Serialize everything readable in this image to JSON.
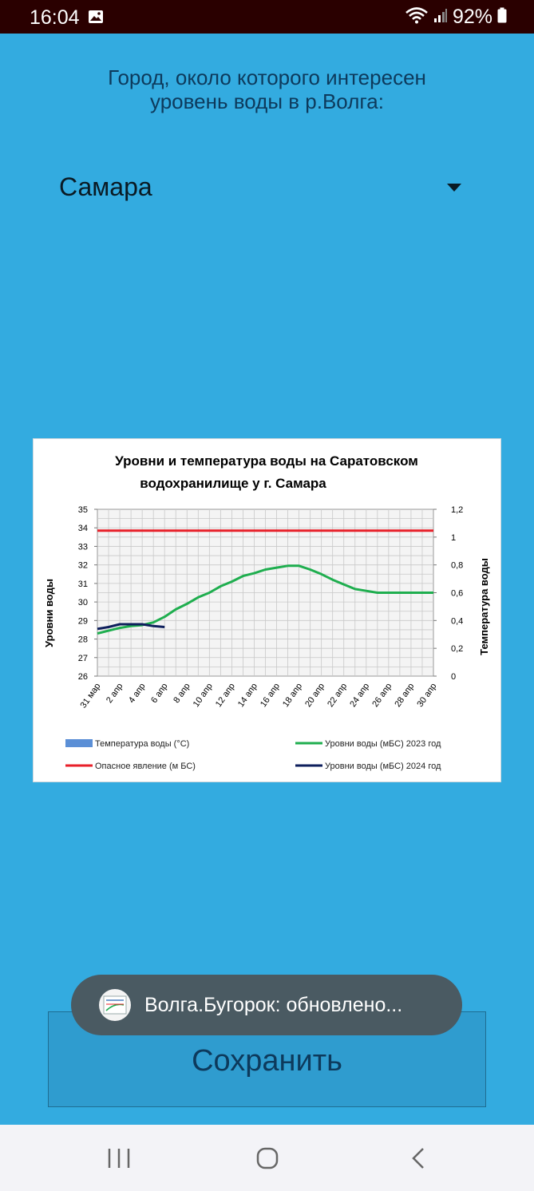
{
  "status_bar": {
    "time": "16:04",
    "battery": "92%",
    "icons": [
      "image-icon",
      "wifi-icon",
      "signal-icon",
      "battery-icon"
    ]
  },
  "prompt": {
    "line1": "Город, около которого интересен",
    "line2": "уровень воды в р.Волга:"
  },
  "city_select": {
    "value": "Самара",
    "icon": "dropdown-arrow-icon"
  },
  "chart_data": {
    "type": "line",
    "title_line1": "Уровни и температура  воды на Саратовском",
    "title_line2": "водохранилище у  г. Самара",
    "ylabel_left": "Уровни воды",
    "ylabel_right": "Температура воды",
    "ylim_left": [
      26,
      35
    ],
    "ylim_right": [
      0,
      1.2
    ],
    "yticks_left": [
      "26",
      "27",
      "28",
      "29",
      "30",
      "31",
      "32",
      "33",
      "34",
      "35"
    ],
    "yticks_right": [
      "0",
      "0,2",
      "0,4",
      "0,6",
      "0,8",
      "1",
      "1,2"
    ],
    "xticks": [
      "31 мар",
      "2 апр",
      "4 апр",
      "6 апр",
      "8 апр",
      "10 апр",
      "12 апр",
      "14 апр",
      "16 апр",
      "18 апр",
      "20 апр",
      "22 апр",
      "24 апр",
      "26 апр",
      "28 апр",
      "30 апр"
    ],
    "grid": true,
    "legend_position": "bottom",
    "legend": [
      {
        "label": "Температура воды (°С)",
        "color": "#5b8fd6",
        "kind": "bar"
      },
      {
        "label": "Уровни воды (мБС) 2023 год",
        "color": "#1fae4f",
        "kind": "line"
      },
      {
        "label": "Опасное явление   (м БС)",
        "color": "#e8202a",
        "kind": "line"
      },
      {
        "label": "Уровни воды (мБС) 2024 год",
        "color": "#0e1f5c",
        "kind": "line"
      }
    ],
    "series": [
      {
        "name": "Опасное явление   (м БС)",
        "color": "#e8202a",
        "x": [
          0,
          30
        ],
        "values": [
          33.85,
          33.85
        ]
      },
      {
        "name": "Уровни воды (мБС) 2023 год",
        "color": "#1fae4f",
        "x": [
          0,
          1,
          2,
          3,
          4,
          5,
          6,
          7,
          8,
          9,
          10,
          11,
          12,
          13,
          14,
          15,
          16,
          17,
          18,
          19,
          20,
          21,
          22,
          23,
          24,
          25,
          26,
          27,
          28,
          29,
          30
        ],
        "values": [
          28.3,
          28.45,
          28.6,
          28.7,
          28.75,
          28.9,
          29.2,
          29.6,
          29.9,
          30.25,
          30.5,
          30.85,
          31.1,
          31.4,
          31.55,
          31.75,
          31.85,
          31.95,
          31.95,
          31.75,
          31.5,
          31.2,
          30.95,
          30.7,
          30.6,
          30.5,
          30.5,
          30.5,
          30.5,
          30.5,
          30.5
        ]
      },
      {
        "name": "Уровни воды (мБС) 2024 год",
        "color": "#0e1f5c",
        "x": [
          0,
          1,
          2,
          3,
          4,
          5,
          6
        ],
        "values": [
          28.55,
          28.65,
          28.8,
          28.8,
          28.8,
          28.7,
          28.65
        ]
      }
    ]
  },
  "toast": {
    "text": "Волга.Бугорок: обновлено..."
  },
  "save_button": {
    "label": "Сохранить"
  },
  "nav_bar": {
    "icons": [
      "recent-apps-icon",
      "home-icon",
      "back-icon"
    ]
  }
}
